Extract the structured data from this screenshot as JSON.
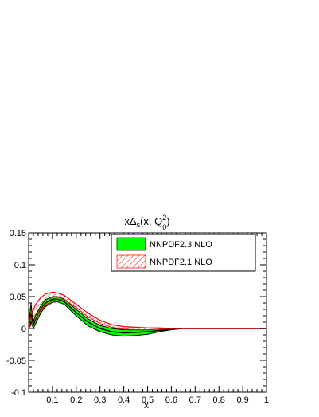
{
  "chart_data": {
    "type": "area",
    "title": {
      "main": "xΔ",
      "sub": "s",
      "paren_open": "(x, Q",
      "sup": "2",
      "sub2": "0",
      "paren_close": ")"
    },
    "xlabel": "x",
    "ylabel": "",
    "xlim": [
      0,
      1
    ],
    "ylim": [
      -0.1,
      0.15
    ],
    "xticks": [
      {
        "value": 0.1,
        "label": "0.1"
      },
      {
        "value": 0.2,
        "label": "0.2"
      },
      {
        "value": 0.3,
        "label": "0.3"
      },
      {
        "value": 0.4,
        "label": "0.4"
      },
      {
        "value": 0.5,
        "label": "0.5"
      },
      {
        "value": 0.6,
        "label": "0.6"
      },
      {
        "value": 0.7,
        "label": "0.7"
      },
      {
        "value": 0.8,
        "label": "0.8"
      },
      {
        "value": 0.9,
        "label": "0.9"
      },
      {
        "value": 1.0,
        "label": "1"
      }
    ],
    "yticks": [
      {
        "value": -0.1,
        "label": "-0.1"
      },
      {
        "value": -0.05,
        "label": "-0.05"
      },
      {
        "value": 0,
        "label": "0"
      },
      {
        "value": 0.05,
        "label": "0.05"
      },
      {
        "value": 0.1,
        "label": "0.1"
      },
      {
        "value": 0.15,
        "label": "0.15"
      }
    ],
    "grid": false,
    "legend_position": "top-right",
    "colors": {
      "nnpdf23_fill": "#00ff00",
      "nnpdf23_line": "#000000",
      "nnpdf21_hatch": "#ff0000",
      "axis": "#000000"
    },
    "x": [
      0.0,
      0.01,
      0.015,
      0.02,
      0.03,
      0.05,
      0.07,
      0.1,
      0.12,
      0.15,
      0.2,
      0.25,
      0.3,
      0.35,
      0.4,
      0.45,
      0.5,
      0.55,
      0.6,
      0.65,
      0.7,
      0.75,
      0.8,
      0.85,
      0.9,
      0.95,
      1.0
    ],
    "series": [
      {
        "name": "NNPDF2.3 NLO",
        "style": "solid-band",
        "upper": [
          0.005,
          0.04,
          0.02,
          0.012,
          0.022,
          0.035,
          0.045,
          0.05,
          0.05,
          0.046,
          0.03,
          0.015,
          0.005,
          0.0,
          -0.002,
          -0.002,
          -0.002,
          -0.001,
          0.0,
          0.0,
          0.0,
          0.0,
          0.0,
          0.0,
          0.0,
          0.0,
          0.0
        ],
        "central": [
          0.0,
          0.025,
          0.012,
          0.006,
          0.015,
          0.03,
          0.04,
          0.046,
          0.046,
          0.042,
          0.025,
          0.01,
          0.0,
          -0.005,
          -0.007,
          -0.006,
          -0.005,
          -0.003,
          -0.001,
          0.0,
          0.0,
          0.0,
          0.0,
          0.0,
          0.0,
          0.0,
          0.0
        ],
        "lower": [
          -0.003,
          0.01,
          0.005,
          0.0,
          0.008,
          0.024,
          0.034,
          0.041,
          0.042,
          0.038,
          0.02,
          0.004,
          -0.005,
          -0.01,
          -0.012,
          -0.011,
          -0.009,
          -0.005,
          -0.002,
          0.0,
          0.0,
          0.0,
          0.0,
          0.0,
          0.0,
          0.0,
          0.0
        ]
      },
      {
        "name": "NNPDF2.1 NLO",
        "style": "hatched-band",
        "upper": [
          0.0,
          0.022,
          0.025,
          0.03,
          0.038,
          0.048,
          0.054,
          0.057,
          0.056,
          0.052,
          0.038,
          0.024,
          0.013,
          0.006,
          0.003,
          0.002,
          0.001,
          0.001,
          0.0,
          0.0,
          0.0,
          0.0,
          0.0,
          0.0,
          0.0,
          0.0,
          0.0
        ],
        "lower": [
          0.0,
          0.005,
          0.008,
          0.01,
          0.016,
          0.028,
          0.036,
          0.044,
          0.046,
          0.045,
          0.033,
          0.018,
          0.008,
          0.002,
          -0.001,
          -0.002,
          -0.002,
          -0.001,
          0.0,
          0.0,
          0.0,
          0.0,
          0.0,
          0.0,
          0.0,
          0.0,
          0.0
        ]
      }
    ]
  }
}
